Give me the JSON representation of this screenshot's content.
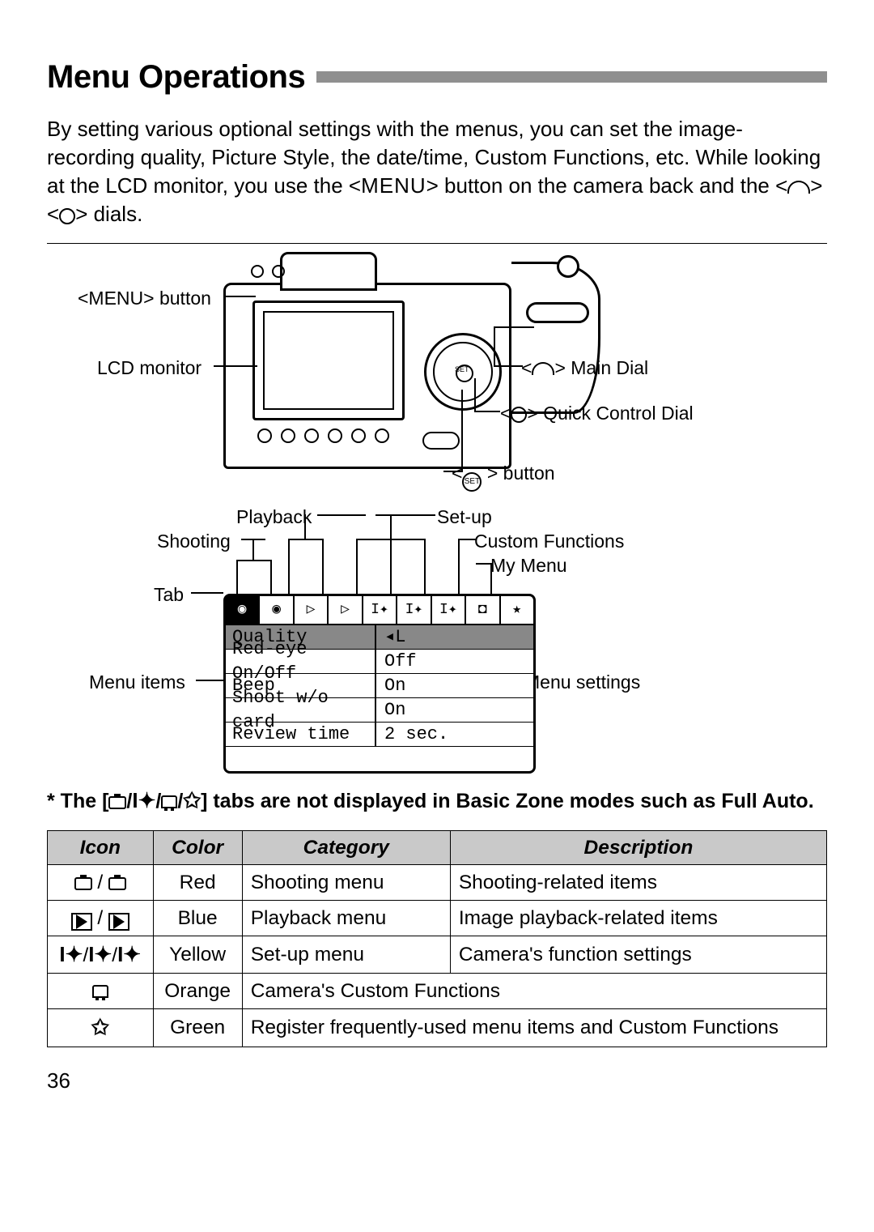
{
  "title": "Menu Operations",
  "intro_parts": {
    "p1": "By setting various optional settings with the menus, you can set the image-recording quality, Picture Style, the date/time, Custom Functions, etc. While looking at the LCD monitor, you use the <",
    "menu_word": "MENU",
    "p2": "> button on the camera back and the <",
    "p3": "> <",
    "p4": "> dials."
  },
  "diagram_labels": {
    "menu_btn": "<MENU> button",
    "lcd": "LCD monitor",
    "main_dial": " Main Dial",
    "qc_dial_pre": "<",
    "qc_dial": "> Quick Control Dial",
    "set_btn": "> button",
    "set_btn_pre": "<",
    "playback": "Playback",
    "shooting": "Shooting",
    "tab": "Tab",
    "menu_items": "Menu items",
    "setup": "Set-up",
    "custom_fn": "Custom Functions",
    "my_menu": "My Menu",
    "menu_settings": "Menu settings"
  },
  "menu_rows": [
    {
      "label": "Quality",
      "value": "◂L"
    },
    {
      "label": "Red-eye On/Off",
      "value": "Off"
    },
    {
      "label": "Beep",
      "value": "On"
    },
    {
      "label": "Shoot w/o card",
      "value": "On"
    },
    {
      "label": "Review time",
      "value": "2 sec."
    }
  ],
  "menu_tabs_glyphs": [
    "📷",
    "📷",
    "▷",
    "▷",
    "🔧",
    "🔧",
    "🔧",
    "⚙",
    "★"
  ],
  "note_prefix": "* The [",
  "note_suffix": "] tabs are not displayed in Basic Zone modes such as Full Auto.",
  "table": {
    "headers": [
      "Icon",
      "Color",
      "Category",
      "Description"
    ],
    "rows": [
      {
        "color": "Red",
        "category": "Shooting menu",
        "description": "Shooting-related items"
      },
      {
        "color": "Blue",
        "category": "Playback menu",
        "description": "Image playback-related items"
      },
      {
        "color": "Yellow",
        "category": "Set-up menu",
        "description": "Camera's function settings"
      },
      {
        "color": "Orange",
        "category_span": "Camera's Custom Functions"
      },
      {
        "color": "Green",
        "category_span": "Register frequently-used menu items and Custom Functions"
      }
    ]
  },
  "page_number": "36"
}
